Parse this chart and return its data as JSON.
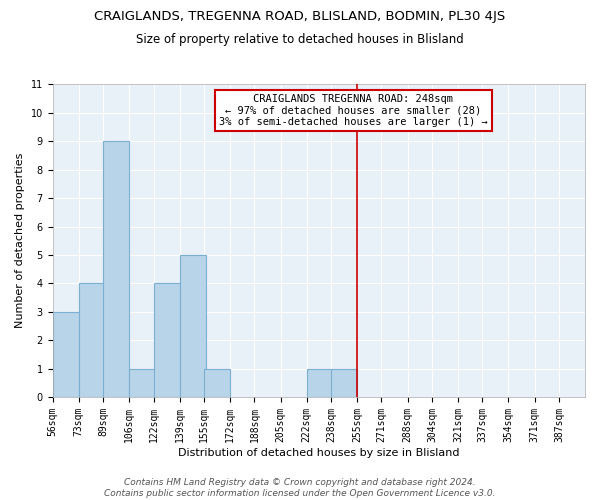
{
  "title": "CRAIGLANDS, TREGENNA ROAD, BLISLAND, BODMIN, PL30 4JS",
  "subtitle": "Size of property relative to detached houses in Blisland",
  "xlabel": "Distribution of detached houses by size in Blisland",
  "ylabel": "Number of detached properties",
  "bin_labels": [
    "56sqm",
    "73sqm",
    "89sqm",
    "106sqm",
    "122sqm",
    "139sqm",
    "155sqm",
    "172sqm",
    "188sqm",
    "205sqm",
    "222sqm",
    "238sqm",
    "255sqm",
    "271sqm",
    "288sqm",
    "304sqm",
    "321sqm",
    "337sqm",
    "354sqm",
    "371sqm",
    "387sqm"
  ],
  "bin_edges": [
    56,
    73,
    89,
    106,
    122,
    139,
    155,
    172,
    188,
    205,
    222,
    238,
    255,
    271,
    288,
    304,
    321,
    337,
    354,
    371,
    387
  ],
  "bar_heights": [
    3,
    4,
    9,
    1,
    4,
    5,
    1,
    0,
    0,
    0,
    1,
    1,
    0,
    0,
    0,
    0,
    0,
    0,
    0,
    0,
    0
  ],
  "bar_color": "#b8d4e8",
  "bar_edge_color": "#7bafd4",
  "property_line_color": "#cc0000",
  "annotation_box_text": "CRAIGLANDS TREGENNA ROAD: 248sqm\n← 97% of detached houses are smaller (28)\n3% of semi-detached houses are larger (1) →",
  "annotation_box_color": "#cc0000",
  "ylim": [
    0,
    11
  ],
  "yticks": [
    0,
    1,
    2,
    3,
    4,
    5,
    6,
    7,
    8,
    9,
    10,
    11
  ],
  "footer_line1": "Contains HM Land Registry data © Crown copyright and database right 2024.",
  "footer_line2": "Contains public sector information licensed under the Open Government Licence v3.0.",
  "background_color": "#e8f0f8",
  "grid_color": "#ffffff",
  "title_fontsize": 9.5,
  "subtitle_fontsize": 8.5,
  "axis_label_fontsize": 8,
  "tick_fontsize": 7,
  "annotation_fontsize": 7.5,
  "footer_fontsize": 6.5
}
